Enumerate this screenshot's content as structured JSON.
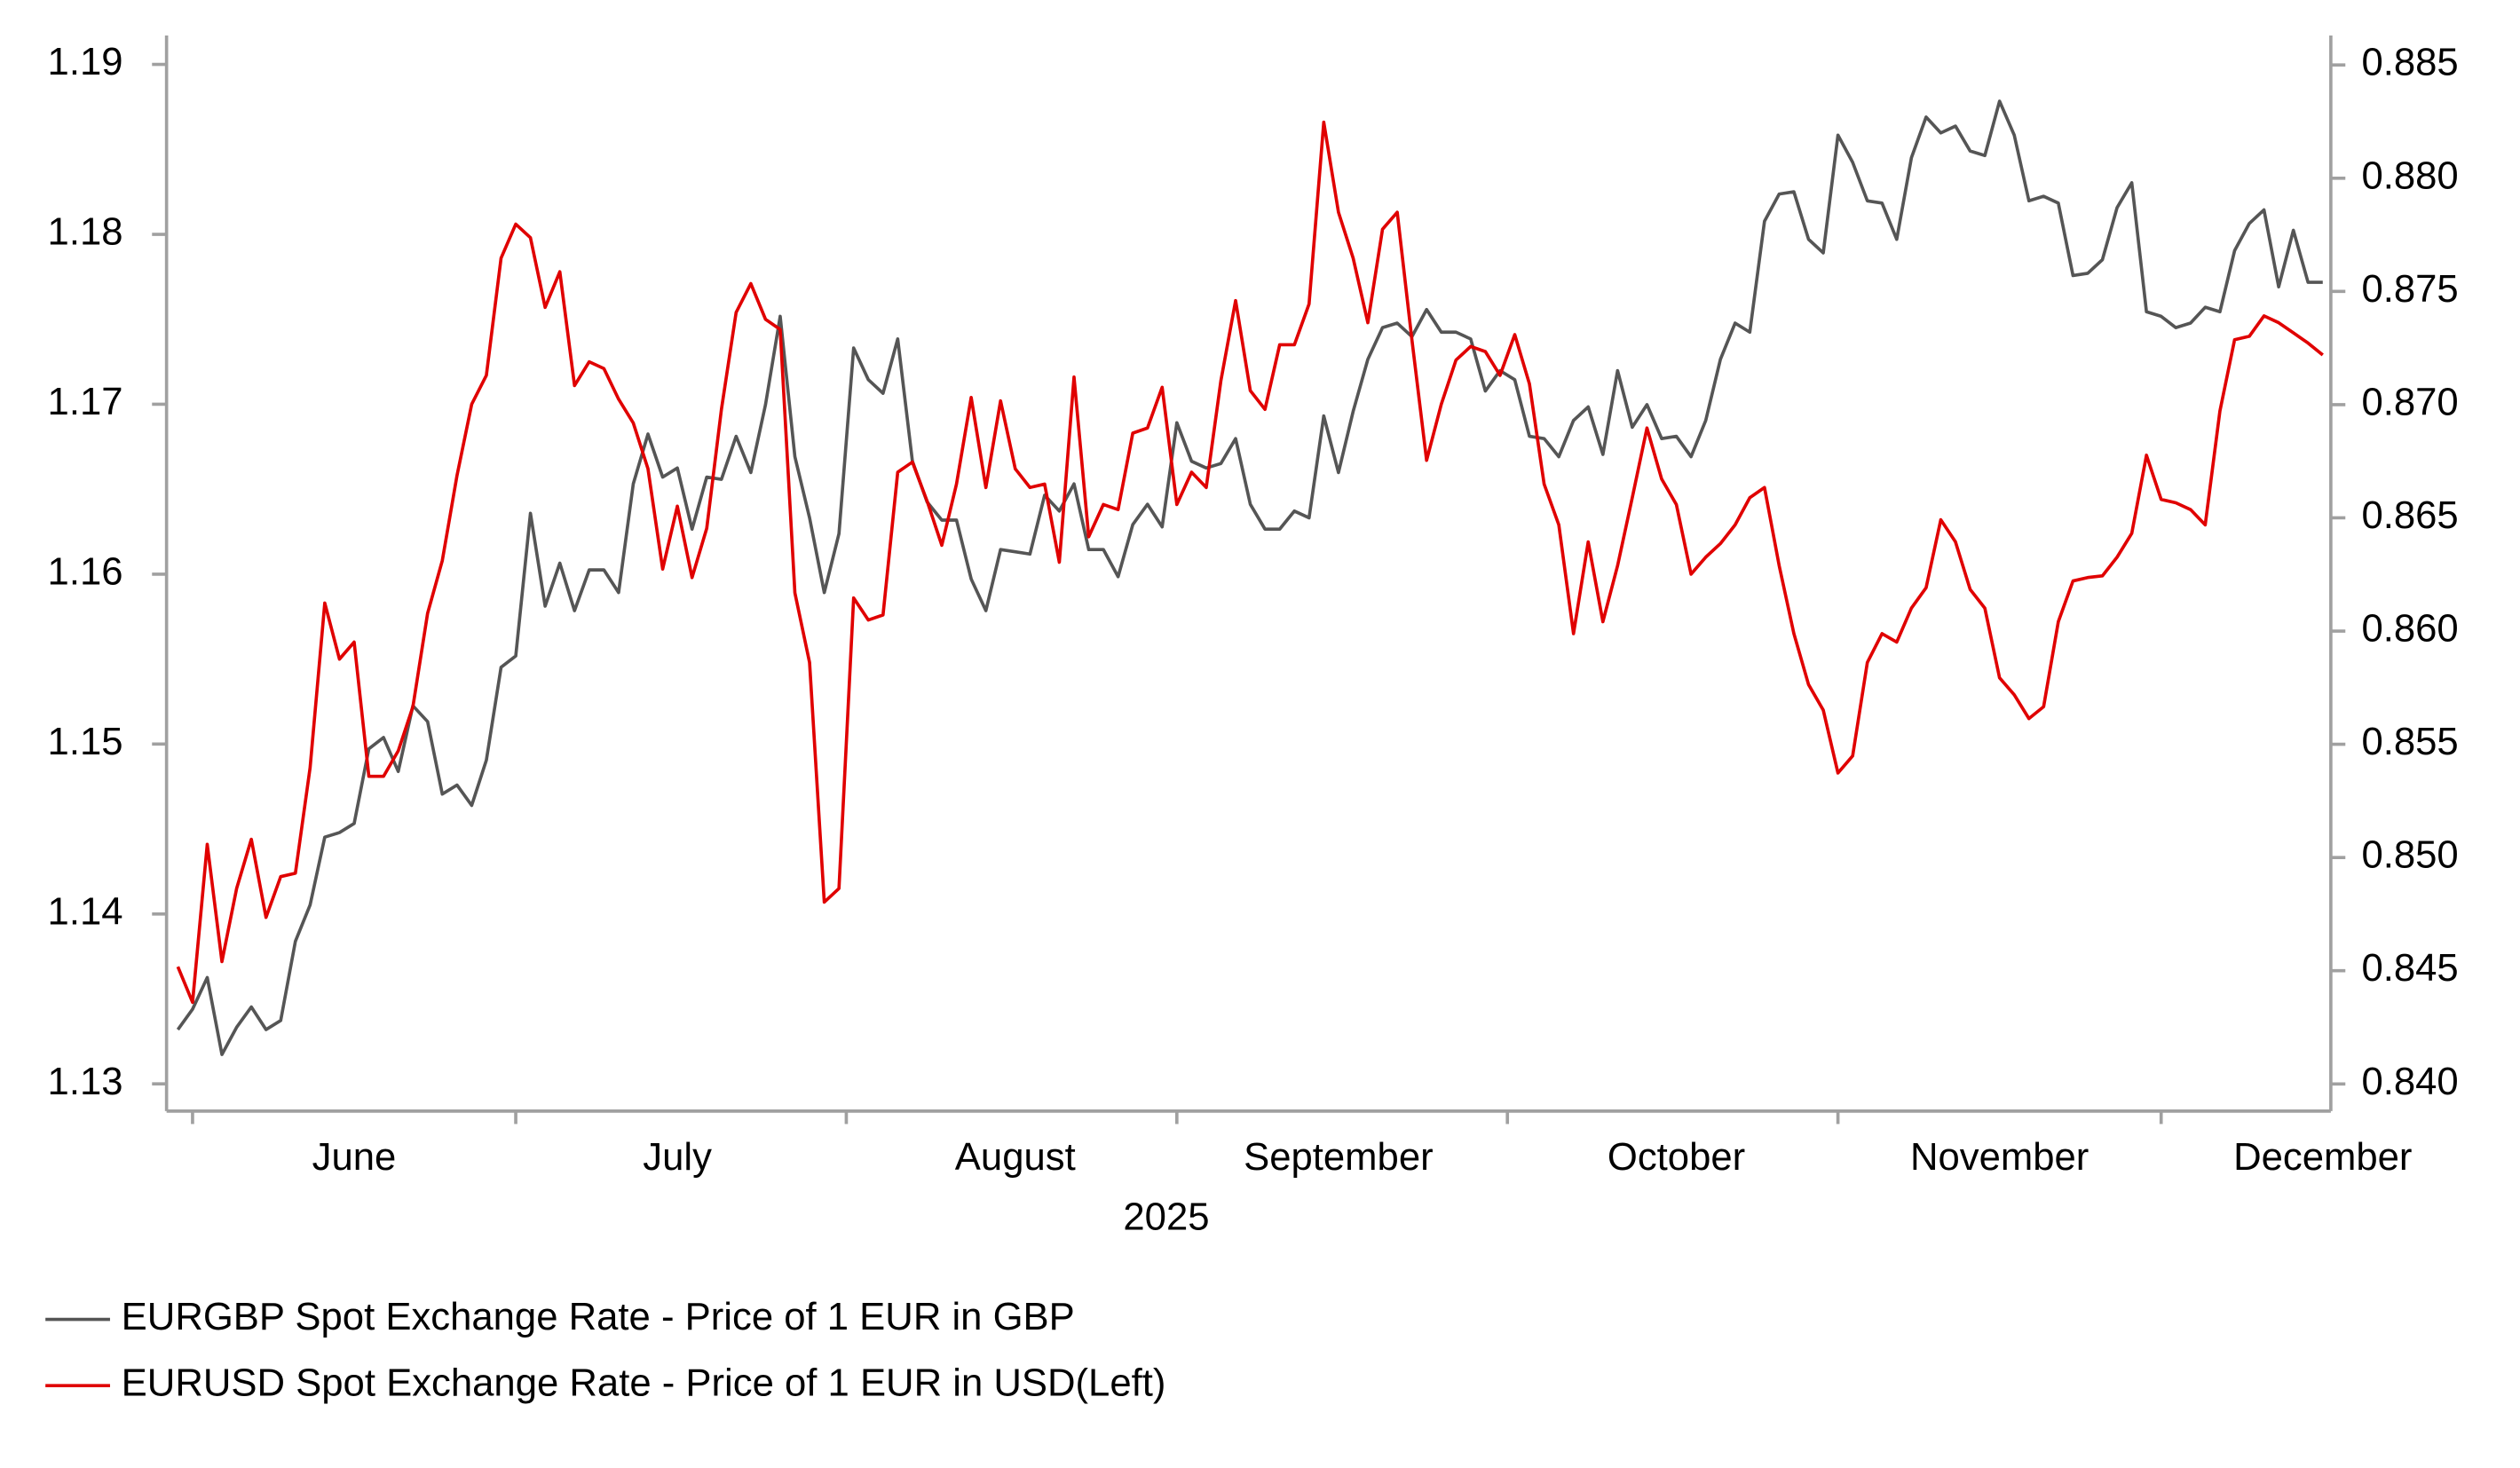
{
  "chart_data": {
    "type": "line",
    "xlabel": "2025",
    "legend": "bottom",
    "categories": [
      null,
      null,
      null,
      null,
      null,
      null,
      null,
      null,
      null,
      null,
      null,
      null,
      "June",
      null,
      null,
      null,
      null,
      null,
      null,
      null,
      null,
      null,
      null,
      null,
      null,
      null,
      null,
      null,
      null,
      null,
      null,
      null,
      null,
      null,
      "July",
      null,
      null,
      null,
      null,
      null,
      null,
      null,
      null,
      null,
      null,
      null,
      null,
      null,
      null,
      null,
      null,
      null,
      null,
      null,
      null,
      null,
      null,
      "August",
      null,
      null,
      null,
      null,
      null,
      null,
      null,
      null,
      null,
      null,
      null,
      null,
      null,
      null,
      null,
      null,
      null,
      null,
      null,
      null,
      null,
      "September",
      null,
      null,
      null,
      null,
      null,
      null,
      null,
      null,
      null,
      null,
      null,
      null,
      null,
      null,
      null,
      null,
      null,
      null,
      null,
      null,
      null,
      null,
      "October",
      null,
      null,
      null,
      null,
      null,
      null,
      null,
      null,
      null,
      null,
      null,
      null,
      null,
      null,
      null,
      null,
      null,
      null,
      null,
      null,
      null,
      "November",
      null,
      null,
      null,
      null,
      null,
      null,
      null,
      null,
      null,
      null,
      null,
      null,
      null,
      null,
      null,
      null,
      null,
      null,
      null,
      null,
      null,
      "December"
    ],
    "series": [
      {
        "name": "EURGBP Spot Exchange Rate - Price of 1 EUR in GBP",
        "color": "#555555",
        "axis": "y2",
        "values": [
          0.8424,
          0.8433,
          0.8447,
          0.8413,
          0.8425,
          0.8434,
          0.8424,
          0.8428,
          0.8463,
          0.8479,
          0.8509,
          0.8511,
          0.8515,
          0.8548,
          0.8553,
          0.8538,
          0.8567,
          0.856,
          0.8528,
          0.8532,
          0.8523,
          0.8543,
          0.8584,
          0.8589,
          0.8652,
          0.8611,
          0.863,
          0.8609,
          0.8627,
          0.8627,
          0.8617,
          0.8665,
          0.8687,
          0.8668,
          0.8672,
          0.8645,
          0.8668,
          0.8667,
          0.8686,
          0.867,
          0.87,
          0.8739,
          0.8677,
          0.865,
          0.8617,
          0.8643,
          0.8725,
          0.8711,
          0.8705,
          0.8729,
          0.8675,
          0.8657,
          0.8649,
          0.8649,
          0.8623,
          0.8609,
          0.8636,
          0.8635,
          0.8634,
          0.866,
          0.8653,
          0.8665,
          0.8636,
          0.8636,
          0.8624,
          0.8647,
          0.8656,
          0.8646,
          0.8692,
          0.8675,
          0.8672,
          0.8674,
          0.8685,
          0.8656,
          0.8645,
          0.8645,
          0.8653,
          0.865,
          0.8695,
          0.867,
          0.8697,
          0.872,
          0.8734,
          0.8736,
          0.873,
          0.8742,
          0.8732,
          0.8732,
          0.8729,
          0.8706,
          0.8715,
          0.8711,
          0.8686,
          0.8685,
          0.8677,
          0.8693,
          0.8699,
          0.8678,
          0.8715,
          0.869,
          0.87,
          0.8685,
          0.8686,
          0.8677,
          0.8693,
          0.872,
          0.8736,
          0.8732,
          0.8781,
          0.8793,
          0.8794,
          0.8773,
          0.8767,
          0.8819,
          0.8807,
          0.879,
          0.8789,
          0.8773,
          0.8809,
          0.8827,
          0.882,
          0.8823,
          0.8812,
          0.881,
          0.8834,
          0.8819,
          0.879,
          0.8792,
          0.8789,
          0.8757,
          0.8758,
          0.8764,
          0.8787,
          0.8798,
          0.8741,
          0.8739,
          0.8734,
          0.8736,
          0.8743,
          0.8741,
          0.8768,
          0.878,
          0.8786,
          0.8752,
          0.8777,
          0.8754,
          0.8754
        ]
      },
      {
        "name": "EURUSD Spot Exchange Rate - Price of 1 EUR in USD(Left)",
        "color": "#e00000",
        "axis": "y",
        "values": [
          1.1369,
          1.1348,
          1.1441,
          1.1372,
          1.1415,
          1.1444,
          1.1398,
          1.1422,
          1.1424,
          1.1486,
          1.1583,
          1.155,
          1.156,
          1.1481,
          1.1481,
          1.1496,
          1.1522,
          1.1577,
          1.1608,
          1.1658,
          1.17,
          1.1717,
          1.1786,
          1.1806,
          1.1798,
          1.1757,
          1.1778,
          1.1711,
          1.1725,
          1.1721,
          1.1703,
          1.1689,
          1.1662,
          1.1603,
          1.164,
          1.1598,
          1.1627,
          1.1697,
          1.1754,
          1.1771,
          1.175,
          1.1744,
          1.1589,
          1.1548,
          1.1407,
          1.1415,
          1.1586,
          1.1573,
          1.1576,
          1.166,
          1.1666,
          1.1643,
          1.1617,
          1.1653,
          1.1704,
          1.1651,
          1.1702,
          1.1662,
          1.1651,
          1.1653,
          1.1607,
          1.1716,
          1.1622,
          1.1641,
          1.1638,
          1.1683,
          1.1686,
          1.171,
          1.1641,
          1.166,
          1.1651,
          1.1714,
          1.1761,
          1.1708,
          1.1697,
          1.1735,
          1.1735,
          1.1759,
          1.1866,
          1.1813,
          1.1786,
          1.1748,
          1.1803,
          1.1813,
          1.1738,
          1.1667,
          1.17,
          1.1726,
          1.1734,
          1.1731,
          1.1717,
          1.1741,
          1.1712,
          1.1653,
          1.1629,
          1.1565,
          1.1619,
          1.1572,
          1.1605,
          1.1645,
          1.1686,
          1.1656,
          1.1641,
          1.16,
          1.161,
          1.1618,
          1.1629,
          1.1645,
          1.1651,
          1.1605,
          1.1565,
          1.1535,
          1.152,
          1.1483,
          1.1493,
          1.1548,
          1.1565,
          1.156,
          1.158,
          1.1592,
          1.1632,
          1.1619,
          1.1591,
          1.158,
          1.1539,
          1.1529,
          1.1515,
          1.1522,
          1.1572,
          1.1596,
          1.1598,
          1.1599,
          1.161,
          1.1624,
          1.167,
          1.1644,
          1.1642,
          1.1638,
          1.1629,
          1.1696,
          1.1738,
          1.174,
          1.1752,
          1.1748,
          1.1742,
          1.1736,
          1.1729
        ]
      }
    ],
    "ylim": [
      1.1284,
      1.1917
    ],
    "yticks": [
      1.13,
      1.14,
      1.15,
      1.16,
      1.17,
      1.18,
      1.19
    ],
    "y2lim": [
      0.8388,
      0.8863
    ],
    "y2ticks": [
      {
        "value": 0.84,
        "label": "0.840"
      },
      0.845,
      {
        "value": 0.85,
        "label": "0.850"
      },
      0.855,
      {
        "value": 0.86,
        "label": "0.860"
      },
      0.865,
      {
        "value": 0.87,
        "label": "0.870"
      },
      0.875,
      {
        "value": 0.88,
        "label": "0.880"
      },
      0.885
    ]
  }
}
